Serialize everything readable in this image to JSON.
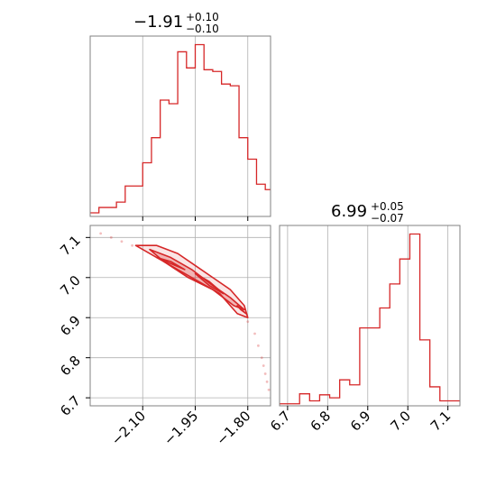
{
  "chart_data": [
    {
      "type": "histogram",
      "panel": "top-left",
      "title": {
        "value": "−1.91",
        "plus": "+0.10",
        "minus": "−0.10"
      },
      "xlim": [
        -2.25,
        -1.735
      ],
      "grid": true,
      "color": "#d62728",
      "bin_edges": [
        -2.25,
        -2.225,
        -2.2,
        -2.175,
        -2.15,
        -2.125,
        -2.1,
        -2.075,
        -2.05,
        -2.025,
        -2.0,
        -1.975,
        -1.95,
        -1.925,
        -1.9,
        -1.875,
        -1.85,
        -1.825,
        -1.8,
        -1.775,
        -1.75,
        -1.735
      ],
      "counts": [
        2,
        5,
        5,
        8,
        17,
        17,
        30,
        44,
        65,
        63,
        92,
        83,
        96,
        82,
        81,
        74,
        73,
        44,
        32,
        18,
        15
      ]
    },
    {
      "type": "contour",
      "panel": "bottom-left",
      "xlim": [
        -2.25,
        -1.735
      ],
      "ylim": [
        6.68,
        7.13
      ],
      "x_ticks": [
        "−2.10",
        "−1.95",
        "−1.80"
      ],
      "x_tick_values": [
        -2.1,
        -1.95,
        -1.8
      ],
      "y_ticks": [
        "6.7",
        "6.8",
        "6.9",
        "7.0",
        "7.1"
      ],
      "y_tick_values": [
        6.7,
        6.8,
        6.9,
        7.0,
        7.1
      ],
      "grid": true,
      "color": "#d62728",
      "scatter_points": [
        [
          -2.22,
          7.11
        ],
        [
          -2.19,
          7.1
        ],
        [
          -2.16,
          7.09
        ],
        [
          -2.13,
          7.08
        ],
        [
          -1.8,
          6.89
        ],
        [
          -1.78,
          6.86
        ],
        [
          -1.77,
          6.83
        ],
        [
          -1.76,
          6.8
        ],
        [
          -1.755,
          6.78
        ],
        [
          -1.75,
          6.76
        ],
        [
          -1.745,
          6.74
        ],
        [
          -1.74,
          6.72
        ]
      ],
      "contours": [
        [
          [
            -2.12,
            7.08
          ],
          [
            -2.06,
            7.08
          ],
          [
            -2.0,
            7.06
          ],
          [
            -1.95,
            7.03
          ],
          [
            -1.9,
            7.0
          ],
          [
            -1.85,
            6.97
          ],
          [
            -1.81,
            6.93
          ],
          [
            -1.8,
            6.9
          ],
          [
            -1.83,
            6.91
          ],
          [
            -1.88,
            6.96
          ],
          [
            -1.94,
            6.99
          ],
          [
            -2.0,
            7.02
          ],
          [
            -2.06,
            7.05
          ],
          [
            -2.12,
            7.08
          ]
        ],
        [
          [
            -2.08,
            7.07
          ],
          [
            -2.02,
            7.05
          ],
          [
            -1.96,
            7.02
          ],
          [
            -1.9,
            6.98
          ],
          [
            -1.85,
            6.95
          ],
          [
            -1.81,
            6.92
          ],
          [
            -1.84,
            6.93
          ],
          [
            -1.9,
            6.97
          ],
          [
            -1.97,
            7.0
          ],
          [
            -2.04,
            7.04
          ],
          [
            -2.08,
            7.07
          ]
        ],
        [
          [
            -2.06,
            7.05
          ],
          [
            -2.02,
            7.04
          ],
          [
            -1.98,
            7.02
          ],
          [
            -2.02,
            7.035
          ],
          [
            -2.06,
            7.05
          ]
        ],
        [
          [
            -1.95,
            7.01
          ],
          [
            -1.91,
            6.99
          ],
          [
            -1.87,
            6.96
          ],
          [
            -1.91,
            6.98
          ],
          [
            -1.95,
            7.01
          ]
        ],
        [
          [
            -1.83,
            6.93
          ],
          [
            -1.805,
            6.91
          ],
          [
            -1.82,
            6.92
          ],
          [
            -1.83,
            6.93
          ]
        ]
      ]
    },
    {
      "type": "histogram",
      "panel": "bottom-right",
      "title": {
        "value": "6.99",
        "plus": "+0.05",
        "minus": "−0.07"
      },
      "xlim": [
        6.68,
        7.13
      ],
      "x_ticks": [
        "6.7",
        "6.8",
        "6.9",
        "7.0",
        "7.1"
      ],
      "x_tick_values": [
        6.7,
        6.8,
        6.9,
        7.0,
        7.1
      ],
      "grid": true,
      "color": "#d62728",
      "bin_edges": [
        6.68,
        6.705,
        6.73,
        6.755,
        6.78,
        6.805,
        6.83,
        6.855,
        6.88,
        6.905,
        6.93,
        6.955,
        6.98,
        7.005,
        7.03,
        7.055,
        7.08,
        7.105,
        7.13
      ],
      "counts": [
        2,
        2,
        12,
        5,
        11,
        8,
        26,
        21,
        78,
        78,
        98,
        122,
        147,
        172,
        66,
        19,
        5,
        5
      ]
    }
  ]
}
